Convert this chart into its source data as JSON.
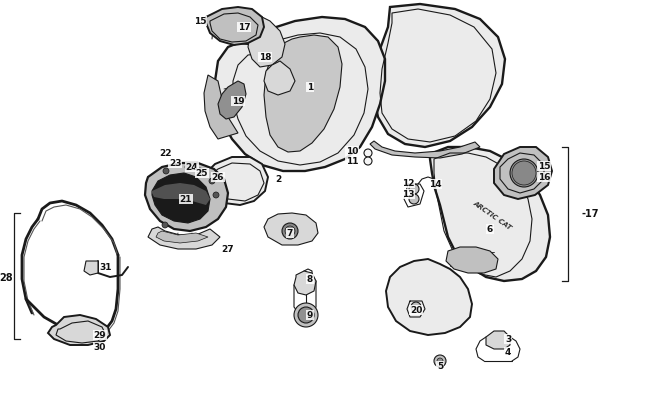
{
  "bg_color": "#ffffff",
  "line_color": "#1a1a1a",
  "label_fontsize": 6.5,
  "label_fontweight": "bold",
  "figsize": [
    6.5,
    4.06
  ],
  "dpi": 100,
  "lw_main": 1.4,
  "lw_thin": 0.8,
  "lw_thick": 2.0,
  "gray_fill": "#d8d8d8",
  "gray_mid": "#c0c0c0",
  "gray_dark": "#909090",
  "gray_light": "#ebebeb",
  "white_fill": "#f5f5f5"
}
